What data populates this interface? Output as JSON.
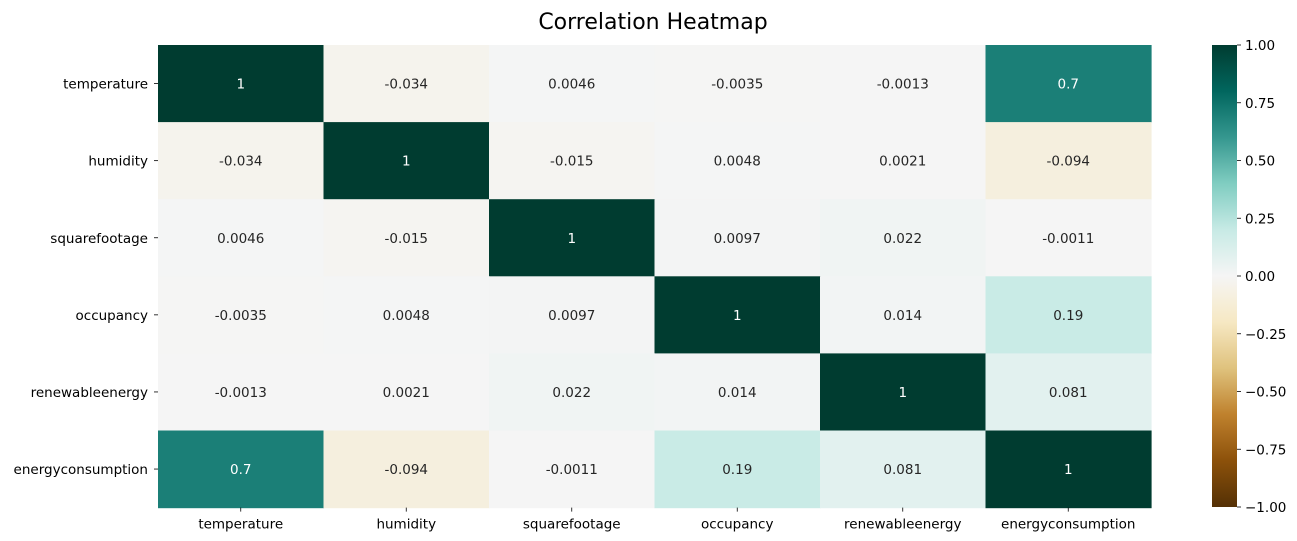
{
  "chart_data": {
    "type": "heatmap",
    "title": "Correlation Heatmap",
    "xlabel": "",
    "ylabel": "",
    "x_categories": [
      "temperature",
      "humidity",
      "squarefootage",
      "occupancy",
      "renewableenergy",
      "energyconsumption"
    ],
    "y_categories": [
      "temperature",
      "humidity",
      "squarefootage",
      "occupancy",
      "renewableenergy",
      "energyconsumption"
    ],
    "values": [
      [
        1,
        -0.034,
        0.0046,
        -0.0035,
        -0.0013,
        0.7
      ],
      [
        -0.034,
        1,
        -0.015,
        0.0048,
        0.0021,
        -0.094
      ],
      [
        0.0046,
        -0.015,
        1,
        0.0097,
        0.022,
        -0.0011
      ],
      [
        -0.0035,
        0.0048,
        0.0097,
        1,
        0.014,
        0.19
      ],
      [
        -0.0013,
        0.0021,
        0.022,
        0.014,
        1,
        0.081
      ],
      [
        0.7,
        -0.094,
        -0.0011,
        0.19,
        0.081,
        1
      ]
    ],
    "annotations": [
      [
        "1",
        "-0.034",
        "0.0046",
        "-0.0035",
        "-0.0013",
        "0.7"
      ],
      [
        "-0.034",
        "1",
        "-0.015",
        "0.0048",
        "0.0021",
        "-0.094"
      ],
      [
        "0.0046",
        "-0.015",
        "1",
        "0.0097",
        "0.022",
        "-0.0011"
      ],
      [
        "-0.0035",
        "0.0048",
        "0.0097",
        "1",
        "0.014",
        "0.19"
      ],
      [
        "-0.0013",
        "0.0021",
        "0.022",
        "0.014",
        "1",
        "0.081"
      ],
      [
        "0.7",
        "-0.094",
        "-0.0011",
        "0.19",
        "0.081",
        "1"
      ]
    ],
    "colormap": "BrBG",
    "vmin": -1.0,
    "vmax": 1.0,
    "colorbar": {
      "ticks": [
        1.0,
        0.75,
        0.5,
        0.25,
        0.0,
        -0.25,
        -0.5,
        -0.75,
        -1.0
      ],
      "tick_labels": [
        "1.00",
        "0.75",
        "0.50",
        "0.25",
        "0.00",
        "−0.25",
        "−0.50",
        "−0.75",
        "−1.00"
      ],
      "placement": "right"
    },
    "colors": {
      "high": "#003c30",
      "mid": "#f5f5f5",
      "low": "#543005"
    }
  }
}
